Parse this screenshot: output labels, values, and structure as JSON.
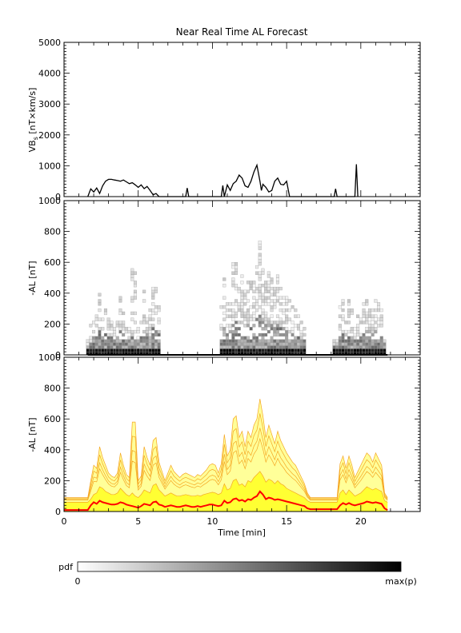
{
  "title": "Near Real Time AL Forecast",
  "colors": {
    "axis": "#000000",
    "line": "#000000",
    "band_outer": "#f5a623",
    "band_fill": "#ffff99",
    "band_inner": "#ffff33",
    "median": "#ff0000"
  },
  "chart_data": [
    {
      "type": "line",
      "ylabel": "VB_s [nT×km/s]",
      "ylabel_main": "VB",
      "ylabel_sub": "s",
      "ylabel_rest": " [nT×km/s]",
      "xlim": [
        0,
        24
      ],
      "ylim": [
        0,
        5000
      ],
      "yticks": [
        "0",
        "1000",
        "2000",
        "3000",
        "4000",
        "5000"
      ],
      "series": [
        {
          "x": [
            1.6,
            1.8,
            2.0,
            2.2,
            2.4,
            2.6,
            2.8,
            3.0,
            3.2,
            3.4,
            3.6,
            3.8,
            4.0,
            4.2,
            4.4,
            4.6,
            4.8,
            5.0,
            5.2,
            5.4,
            5.6,
            5.8,
            6.0,
            6.2,
            6.4,
            8.2,
            8.3,
            8.4,
            10.6,
            10.7,
            10.8,
            11.0,
            11.2,
            11.4,
            11.6,
            11.8,
            12.0,
            12.2,
            12.4,
            12.6,
            12.8,
            13.0,
            13.2,
            13.3,
            13.4,
            13.6,
            13.8,
            14.0,
            14.2,
            14.4,
            14.6,
            14.8,
            15.0,
            15.2,
            18.2,
            18.3,
            18.4,
            19.6,
            19.7,
            19.8
          ],
          "y": [
            0,
            250,
            150,
            280,
            100,
            350,
            500,
            560,
            560,
            540,
            520,
            500,
            540,
            480,
            420,
            450,
            380,
            300,
            380,
            260,
            330,
            200,
            60,
            100,
            0,
            0,
            280,
            0,
            0,
            360,
            0,
            380,
            200,
            420,
            500,
            700,
            600,
            350,
            300,
            500,
            800,
            1020,
            500,
            200,
            400,
            300,
            150,
            200,
            500,
            600,
            400,
            380,
            500,
            0,
            0,
            250,
            0,
            0,
            1050,
            0
          ]
        }
      ]
    },
    {
      "type": "heatmap",
      "ylabel": "-AL [nT]",
      "xlim": [
        0,
        24
      ],
      "ylim": [
        0,
        1000
      ],
      "yticks": [
        "0",
        "200",
        "400",
        "600",
        "800",
        "1000"
      ],
      "segments": [
        [
          1.6,
          6.4
        ],
        [
          10.6,
          16.3
        ],
        [
          18.2,
          21.8
        ]
      ],
      "bin_width_nT": 20,
      "colorbar": {
        "label": "pdf",
        "min_label": "0",
        "max_label": "max(p)"
      }
    },
    {
      "type": "area",
      "ylabel": "-AL [nT]",
      "xlabel": "Time [min]",
      "xlim": [
        0,
        24
      ],
      "ylim": [
        0,
        1000
      ],
      "xticks": [
        "0",
        "5",
        "10",
        "15",
        "20"
      ],
      "yticks": [
        "0",
        "200",
        "400",
        "600",
        "800",
        "1000"
      ],
      "x": [
        0.0,
        1.6,
        1.8,
        2.0,
        2.2,
        2.4,
        2.6,
        2.8,
        3.0,
        3.2,
        3.4,
        3.6,
        3.8,
        4.0,
        4.2,
        4.4,
        4.6,
        4.8,
        5.0,
        5.2,
        5.4,
        5.6,
        5.8,
        6.0,
        6.2,
        6.4,
        6.6,
        6.8,
        7.0,
        7.2,
        7.4,
        7.6,
        7.8,
        8.0,
        8.2,
        8.4,
        8.6,
        8.8,
        9.0,
        9.2,
        9.4,
        9.6,
        9.8,
        10.0,
        10.2,
        10.4,
        10.6,
        10.8,
        11.0,
        11.2,
        11.4,
        11.6,
        11.8,
        12.0,
        12.2,
        12.4,
        12.6,
        12.8,
        13.0,
        13.2,
        13.4,
        13.6,
        13.8,
        14.0,
        14.2,
        14.4,
        14.6,
        14.8,
        15.0,
        15.2,
        15.4,
        15.6,
        15.8,
        16.0,
        16.2,
        16.4,
        16.6,
        16.8,
        17.0,
        17.2,
        17.4,
        17.6,
        17.8,
        18.0,
        18.2,
        18.4,
        18.6,
        18.8,
        19.0,
        19.2,
        19.4,
        19.6,
        19.8,
        20.0,
        20.2,
        20.4,
        20.6,
        20.8,
        21.0,
        21.2,
        21.4,
        21.6,
        21.8
      ],
      "upper": [
        90,
        90,
        200,
        300,
        280,
        420,
        350,
        300,
        250,
        230,
        220,
        250,
        380,
        300,
        240,
        220,
        580,
        580,
        200,
        230,
        420,
        350,
        300,
        460,
        480,
        320,
        260,
        200,
        250,
        300,
        260,
        240,
        220,
        240,
        250,
        240,
        230,
        220,
        240,
        230,
        250,
        270,
        300,
        310,
        300,
        250,
        310,
        500,
        360,
        400,
        600,
        620,
        480,
        520,
        420,
        520,
        480,
        560,
        600,
        730,
        620,
        480,
        560,
        500,
        440,
        520,
        460,
        420,
        380,
        350,
        320,
        300,
        260,
        220,
        180,
        120,
        90,
        90,
        90,
        90,
        90,
        90,
        90,
        90,
        90,
        90,
        310,
        360,
        280,
        360,
        300,
        220,
        260,
        300,
        340,
        380,
        360,
        320,
        380,
        340,
        300,
        120,
        90
      ],
      "inner_upper": [
        60,
        60,
        80,
        110,
        120,
        160,
        150,
        130,
        120,
        110,
        110,
        120,
        150,
        130,
        110,
        100,
        120,
        100,
        90,
        110,
        140,
        130,
        120,
        170,
        180,
        140,
        120,
        100,
        110,
        120,
        110,
        100,
        100,
        105,
        110,
        105,
        100,
        100,
        105,
        100,
        110,
        115,
        120,
        125,
        120,
        110,
        120,
        180,
        140,
        150,
        200,
        210,
        170,
        180,
        160,
        200,
        190,
        220,
        240,
        260,
        230,
        190,
        210,
        200,
        180,
        200,
        180,
        170,
        150,
        140,
        130,
        120,
        110,
        100,
        90,
        70,
        60,
        60,
        60,
        60,
        60,
        60,
        60,
        60,
        60,
        60,
        120,
        140,
        110,
        140,
        120,
        100,
        110,
        120,
        140,
        160,
        150,
        140,
        150,
        140,
        130,
        70,
        60
      ],
      "median": [
        10,
        10,
        40,
        60,
        50,
        70,
        60,
        55,
        50,
        45,
        45,
        50,
        60,
        55,
        45,
        40,
        35,
        30,
        25,
        35,
        50,
        45,
        40,
        60,
        65,
        45,
        40,
        30,
        35,
        40,
        35,
        30,
        30,
        35,
        40,
        35,
        30,
        30,
        35,
        30,
        35,
        40,
        45,
        45,
        40,
        35,
        40,
        70,
        55,
        60,
        80,
        85,
        70,
        75,
        65,
        80,
        75,
        90,
        100,
        130,
        110,
        80,
        90,
        85,
        75,
        80,
        75,
        70,
        65,
        60,
        55,
        50,
        45,
        40,
        35,
        20,
        15,
        15,
        15,
        15,
        15,
        15,
        15,
        15,
        15,
        15,
        40,
        55,
        45,
        55,
        45,
        40,
        45,
        50,
        55,
        65,
        60,
        55,
        60,
        55,
        50,
        20,
        10
      ]
    }
  ]
}
